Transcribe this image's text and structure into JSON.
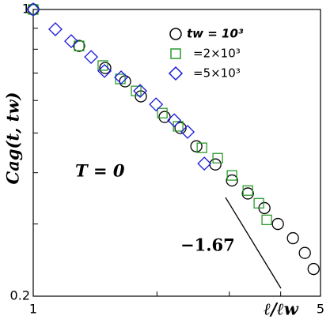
{
  "chart_data": {
    "type": "scatter",
    "xlabel": "ℓ/ℓw",
    "ylabel": "Cag(t, tw)",
    "annotations": [
      "T = 0",
      "−1.67"
    ],
    "xscale": "log",
    "yscale": "log",
    "xlim": [
      1,
      5
    ],
    "ylim": [
      0.2,
      1
    ],
    "xticks": [
      1,
      5
    ],
    "yticks": [
      0.2,
      1
    ],
    "xminor": [
      2,
      3,
      4
    ],
    "yminor": [
      0.3,
      0.4,
      0.5,
      0.6,
      0.7,
      0.8,
      0.9
    ],
    "legend": "upper right",
    "series": [
      {
        "name": "tw = 10³",
        "color": "#000000",
        "marker": "circle",
        "x": [
          1,
          1.293,
          1.497,
          1.673,
          1.828,
          2.088,
          2.282,
          2.494,
          2.775,
          3.045,
          3.328,
          3.652,
          3.938,
          4.285,
          4.58,
          4.81
        ],
        "values": [
          1,
          0.815,
          0.72,
          0.668,
          0.614,
          0.547,
          0.514,
          0.464,
          0.419,
          0.383,
          0.356,
          0.328,
          0.3,
          0.277,
          0.255,
          0.233
        ]
      },
      {
        "name": "=2×10³",
        "color": "#2a9a2a",
        "marker": "square",
        "x": [
          1,
          1.293,
          1.477,
          1.629,
          1.78,
          2.061,
          2.252,
          2.573,
          2.811,
          3.045,
          3.328,
          3.54,
          3.7
        ],
        "values": [
          1,
          0.815,
          0.73,
          0.677,
          0.633,
          0.559,
          0.519,
          0.46,
          0.434,
          0.394,
          0.362,
          0.337,
          0.307
        ]
      },
      {
        "name": "=5×10³",
        "color": "#1a1adc",
        "marker": "diamond",
        "x": [
          1,
          1.132,
          1.237,
          1.383,
          1.491,
          1.636,
          1.82,
          1.99,
          2.203,
          2.375,
          2.608
        ],
        "values": [
          1,
          0.895,
          0.837,
          0.766,
          0.708,
          0.683,
          0.633,
          0.587,
          0.537,
          0.503,
          0.421
        ]
      }
    ]
  }
}
